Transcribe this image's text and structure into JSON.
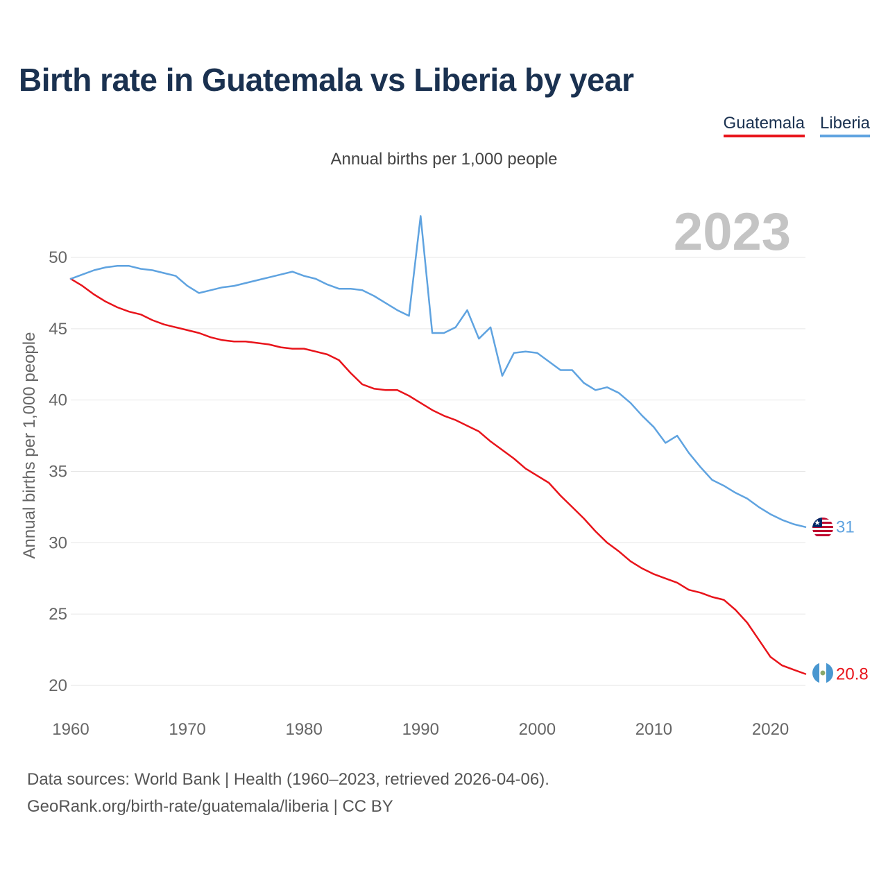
{
  "title": "Birth rate in Guatemala vs Liberia by year",
  "subtitle": "Annual births per 1,000 people",
  "legend": [
    "Guatemala",
    "Liberia"
  ],
  "year_label": "2023",
  "footer": {
    "line1": "Data sources: World Bank | Health (1960–2023, retrieved 2026-04-06).",
    "line2": "GeoRank.org/birth-rate/guatemala/liberia | CC BY"
  },
  "colors": {
    "guatemala": "#e8141b",
    "liberia": "#5fa3e0",
    "title": "#1a3150"
  },
  "chart_data": {
    "type": "line",
    "title": "Birth rate in Guatemala vs Liberia by year",
    "xlabel": "",
    "ylabel": "Annual births per 1,000 people",
    "xlim": [
      1960,
      2023
    ],
    "ylim": [
      20,
      53
    ],
    "x_ticks": [
      1960,
      1970,
      1980,
      1990,
      2000,
      2010,
      2020
    ],
    "y_ticks": [
      20,
      25,
      30,
      35,
      40,
      45,
      50
    ],
    "grid": true,
    "x": [
      1960,
      1961,
      1962,
      1963,
      1964,
      1965,
      1966,
      1967,
      1968,
      1969,
      1970,
      1971,
      1972,
      1973,
      1974,
      1975,
      1976,
      1977,
      1978,
      1979,
      1980,
      1981,
      1982,
      1983,
      1984,
      1985,
      1986,
      1987,
      1988,
      1989,
      1990,
      1991,
      1992,
      1993,
      1994,
      1995,
      1996,
      1997,
      1998,
      1999,
      2000,
      2001,
      2002,
      2003,
      2004,
      2005,
      2006,
      2007,
      2008,
      2009,
      2010,
      2011,
      2012,
      2013,
      2014,
      2015,
      2016,
      2017,
      2018,
      2019,
      2020,
      2021,
      2022,
      2023
    ],
    "series": [
      {
        "name": "Guatemala",
        "end_label": "20.8",
        "values": [
          48.5,
          48.0,
          47.4,
          46.9,
          46.5,
          46.2,
          46.0,
          45.6,
          45.3,
          45.1,
          44.9,
          44.7,
          44.4,
          44.2,
          44.1,
          44.1,
          44.0,
          43.9,
          43.7,
          43.6,
          43.6,
          43.4,
          43.2,
          42.8,
          41.9,
          41.1,
          40.8,
          40.7,
          40.7,
          40.3,
          39.8,
          39.3,
          38.9,
          38.6,
          38.2,
          37.8,
          37.1,
          36.5,
          35.9,
          35.2,
          34.7,
          34.2,
          33.3,
          32.5,
          31.7,
          30.8,
          30.0,
          29.4,
          28.7,
          28.2,
          27.8,
          27.5,
          27.2,
          26.7,
          26.5,
          26.2,
          26.0,
          25.3,
          24.4,
          23.2,
          22.0,
          21.4,
          21.1,
          20.8
        ]
      },
      {
        "name": "Liberia",
        "end_label": "31",
        "values": [
          48.5,
          48.8,
          49.1,
          49.3,
          49.4,
          49.4,
          49.2,
          49.1,
          48.9,
          48.7,
          48.0,
          47.5,
          47.7,
          47.9,
          48.0,
          48.2,
          48.4,
          48.6,
          48.8,
          49.0,
          48.7,
          48.5,
          48.1,
          47.8,
          47.8,
          47.7,
          47.3,
          46.8,
          46.3,
          45.9,
          52.9,
          44.7,
          44.7,
          45.1,
          46.3,
          44.3,
          45.1,
          41.7,
          43.3,
          43.4,
          43.3,
          42.7,
          42.1,
          42.1,
          41.2,
          40.7,
          40.9,
          40.5,
          39.8,
          38.9,
          38.1,
          37.0,
          37.5,
          36.3,
          35.3,
          34.4,
          34.0,
          33.5,
          33.1,
          32.5,
          32.0,
          31.6,
          31.3,
          31.1
        ]
      }
    ]
  }
}
